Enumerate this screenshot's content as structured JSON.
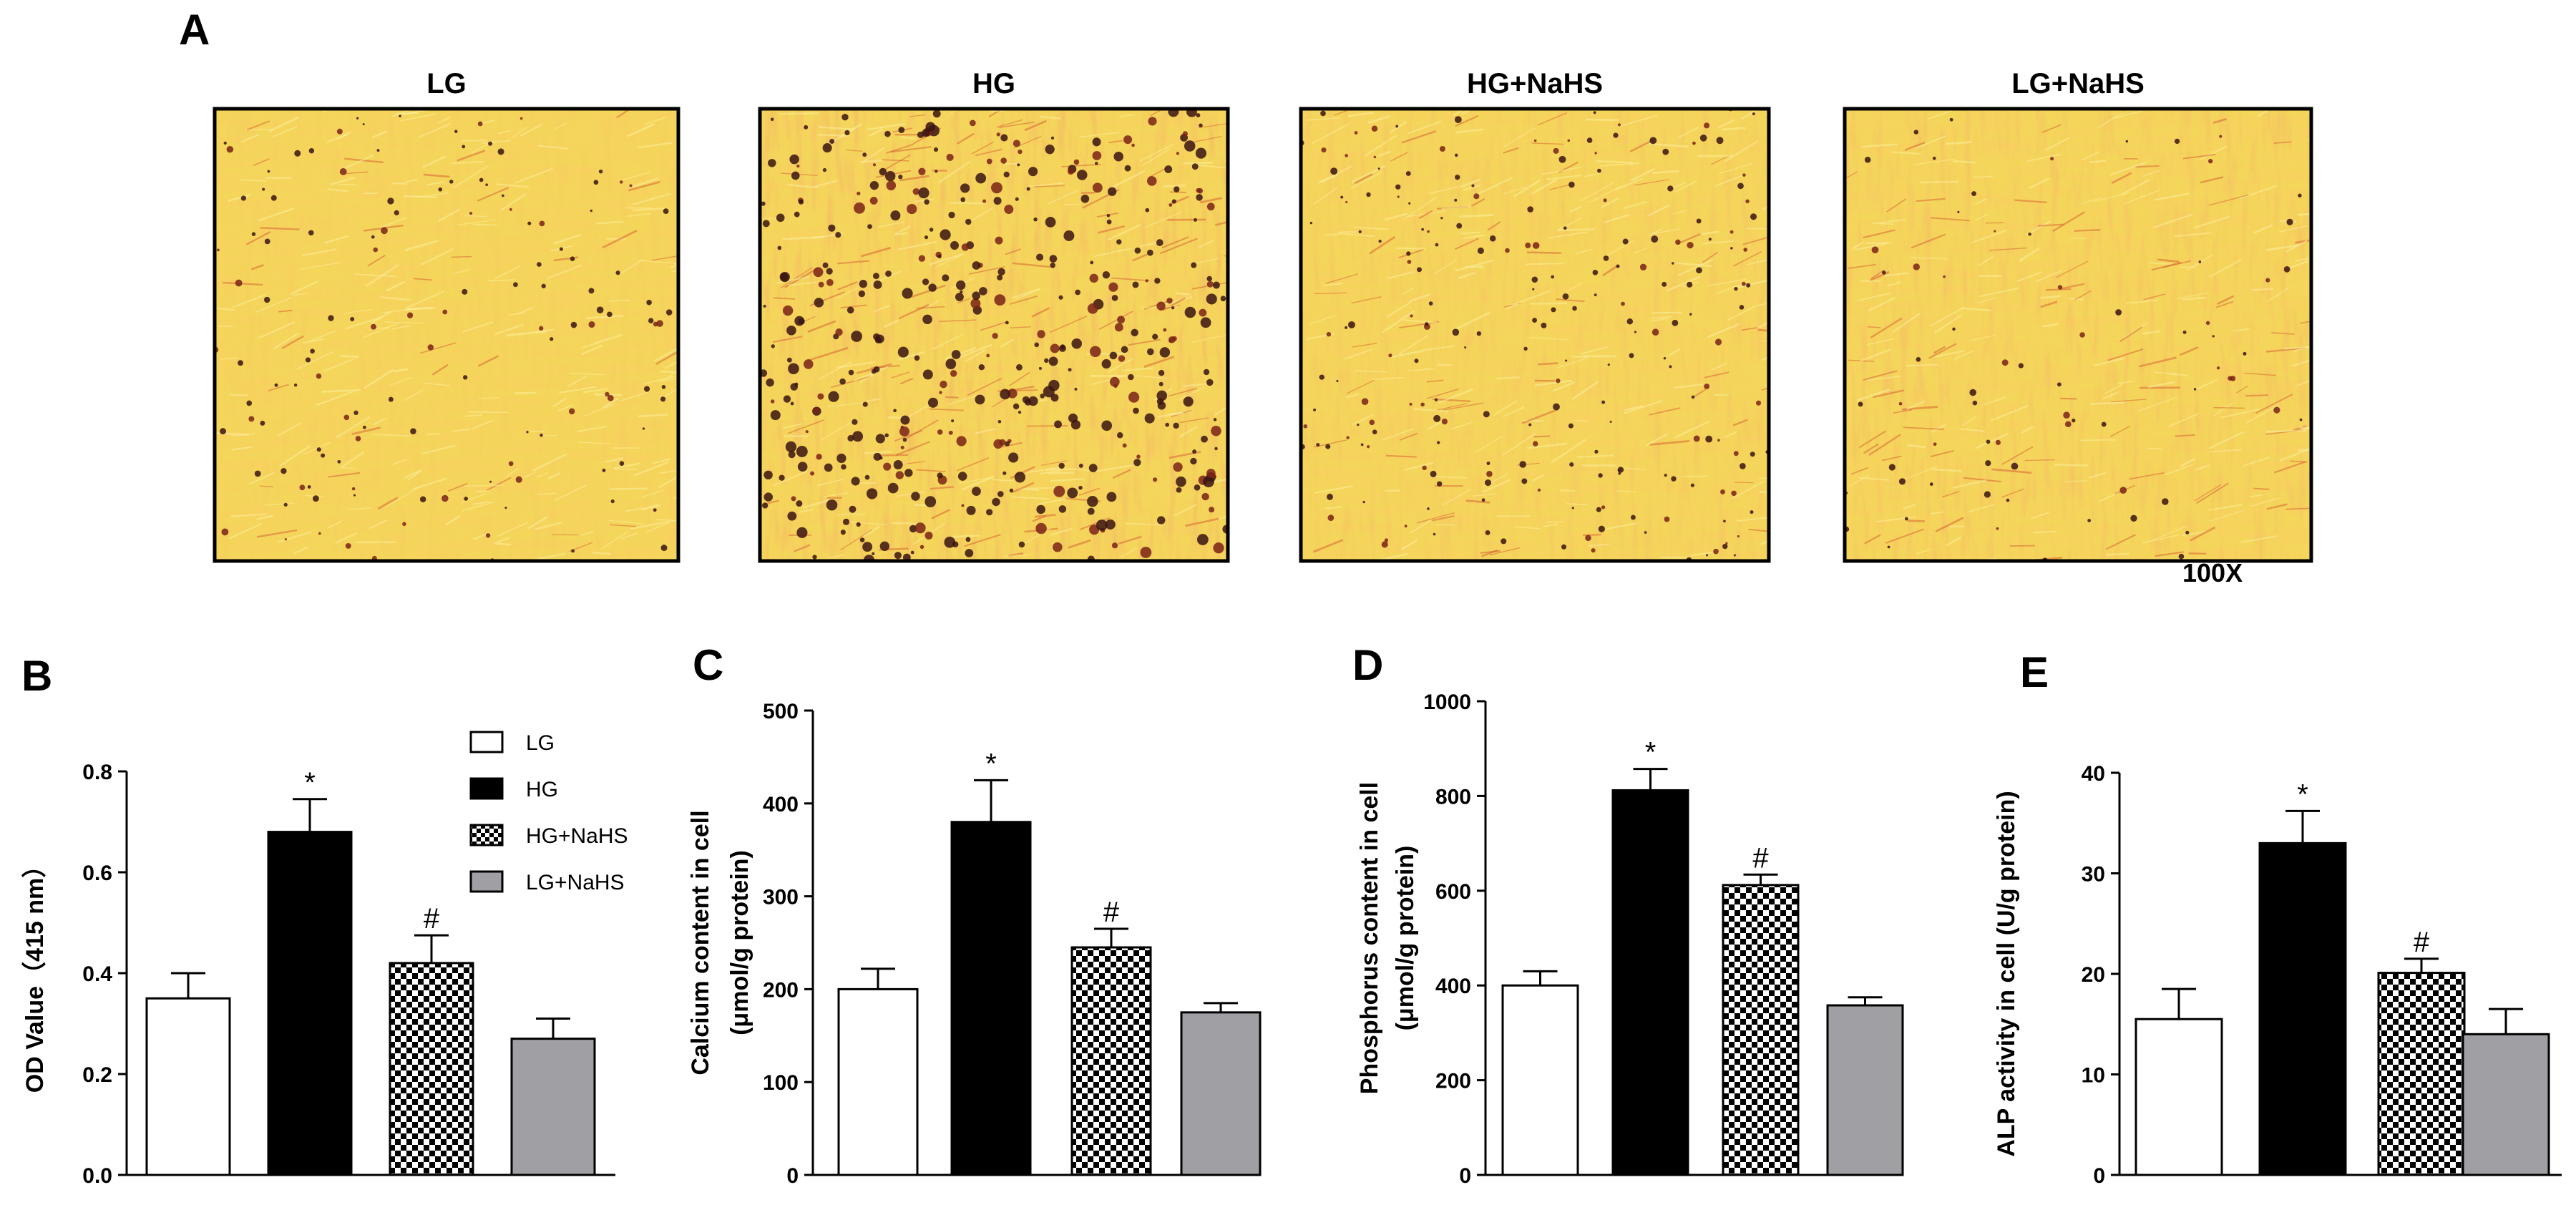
{
  "panelA": {
    "letter": "A",
    "images": [
      {
        "label": "LG"
      },
      {
        "label": "HG"
      },
      {
        "label": "HG+NaHS"
      },
      {
        "label": "LG+NaHS"
      }
    ],
    "magnification": "100X"
  },
  "legend": {
    "entries": [
      {
        "label": "LG",
        "style": "white"
      },
      {
        "label": "HG",
        "style": "black"
      },
      {
        "label": "HG+NaHS",
        "style": "checker"
      },
      {
        "label": "LG+NaHS",
        "style": "gray"
      }
    ]
  },
  "colors": {
    "white_bar": "#ffffff",
    "black_bar": "#000000",
    "gray_bar": "#a0a0a4",
    "stain_base": "#f0c236",
    "stain_light": "#f8e77a",
    "stain_red": "#d2522c",
    "deposit": "#3a1410"
  },
  "chart_data": [
    {
      "letter": "B",
      "type": "bar",
      "categories": [
        "LG",
        "HG",
        "HG+NaHS",
        "LG+NaHS"
      ],
      "values": [
        0.35,
        0.68,
        0.42,
        0.27
      ],
      "errors": [
        0.05,
        0.065,
        0.055,
        0.04
      ],
      "markers": [
        "",
        "*",
        "#",
        ""
      ],
      "ylabel": "OD Value（415 nm）",
      "ylim": [
        0,
        0.8
      ],
      "yticks": [
        "0.0",
        "0.2",
        "0.4",
        "0.6",
        "0.8"
      ]
    },
    {
      "letter": "C",
      "type": "bar",
      "categories": [
        "LG",
        "HG",
        "HG+NaHS",
        "LG+NaHS"
      ],
      "values": [
        200,
        380,
        245,
        175
      ],
      "errors": [
        22,
        45,
        20,
        10
      ],
      "markers": [
        "",
        "*",
        "#",
        ""
      ],
      "ylabel": "Calcium content in cell",
      "ylabel2": "(μmol/g protein)",
      "ylim": [
        0,
        500
      ],
      "yticks": [
        "0",
        "100",
        "200",
        "300",
        "400",
        "500"
      ]
    },
    {
      "letter": "D",
      "type": "bar",
      "categories": [
        "LG",
        "HG",
        "HG+NaHS",
        "LG+NaHS"
      ],
      "values": [
        400,
        812,
        612,
        358
      ],
      "errors": [
        30,
        45,
        22,
        17
      ],
      "markers": [
        "",
        "*",
        "#",
        ""
      ],
      "ylabel": "Phosphorus content in cell",
      "ylabel2": "(μmol/g protein)",
      "ylim": [
        0,
        1000
      ],
      "yticks": [
        "0",
        "200",
        "400",
        "600",
        "800",
        "1000"
      ]
    },
    {
      "letter": "E",
      "type": "bar",
      "categories": [
        "LG",
        "HG",
        "HG+NaHS",
        "LG+NaHS"
      ],
      "values": [
        15.5,
        33,
        20.1,
        14
      ],
      "errors": [
        3,
        3.2,
        1.4,
        2.5
      ],
      "markers": [
        "",
        "*",
        "#",
        ""
      ],
      "ylabel": "ALP activity in cell (U/g protein)",
      "ylim": [
        0,
        40
      ],
      "yticks": [
        "0",
        "10",
        "20",
        "30",
        "40"
      ]
    }
  ]
}
